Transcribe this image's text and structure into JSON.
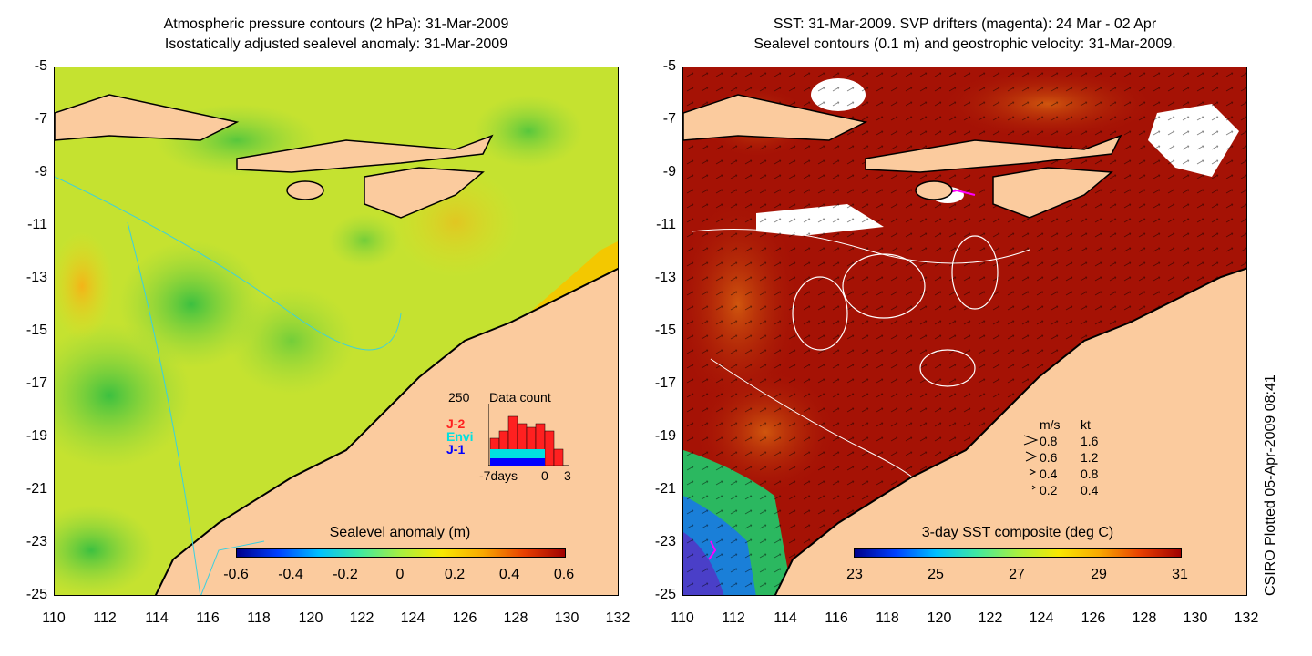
{
  "left_panel": {
    "title_line1": "Atmospheric pressure contours (2 hPa): 31-Mar-2009",
    "title_line2": "Isostatically adjusted sealevel anomaly: 31-Mar-2009",
    "colorbar_title": "Sealevel anomaly (m)",
    "colorbar_labels": [
      "-0.6",
      "-0.4",
      "-0.2",
      "0",
      "0.2",
      "0.4",
      "0.6"
    ],
    "data_count": {
      "title": "Data count",
      "max_label": "250",
      "series": [
        "J-2",
        "Envi",
        "J-1"
      ],
      "series_colors": [
        "#ff2020",
        "#00e0e0",
        "#0000ff"
      ],
      "x_labels": [
        "-7days",
        "0",
        "3"
      ]
    }
  },
  "right_panel": {
    "title_line1": "SST: 31-Mar-2009. SVP drifters (magenta): 24 Mar - 02 Apr",
    "title_line2": "Sealevel contours (0.1 m) and geostrophic velocity: 31-Mar-2009.",
    "colorbar_title": "3-day SST composite (deg C)",
    "colorbar_labels": [
      "23",
      "25",
      "27",
      "29",
      "31"
    ],
    "velocity_legend": {
      "header_ms": "m/s",
      "header_kt": "kt",
      "rows": [
        {
          "ms": "0.8",
          "kt": "1.6"
        },
        {
          "ms": "0.6",
          "kt": "1.2"
        },
        {
          "ms": "0.4",
          "kt": "0.8"
        },
        {
          "ms": "0.2",
          "kt": "0.4"
        }
      ]
    }
  },
  "axes": {
    "y_ticks": [
      "-5",
      "-7",
      "-9",
      "-11",
      "-13",
      "-15",
      "-17",
      "-19",
      "-21",
      "-23",
      "-25"
    ],
    "x_ticks": [
      "110",
      "112",
      "114",
      "116",
      "118",
      "120",
      "122",
      "124",
      "126",
      "128",
      "130",
      "132"
    ]
  },
  "credit": "CSIRO Plotted 05-Apr-2009 08:41",
  "colors": {
    "land": "#fbcb9e",
    "coast": "#000000",
    "sla_green": "#7cd84a",
    "sla_yellow": "#dde81e",
    "sla_orange": "#f5c800",
    "sst_dark": "#a51205",
    "sst_orange": "#c8460c",
    "drifter": "#ff00ff"
  }
}
